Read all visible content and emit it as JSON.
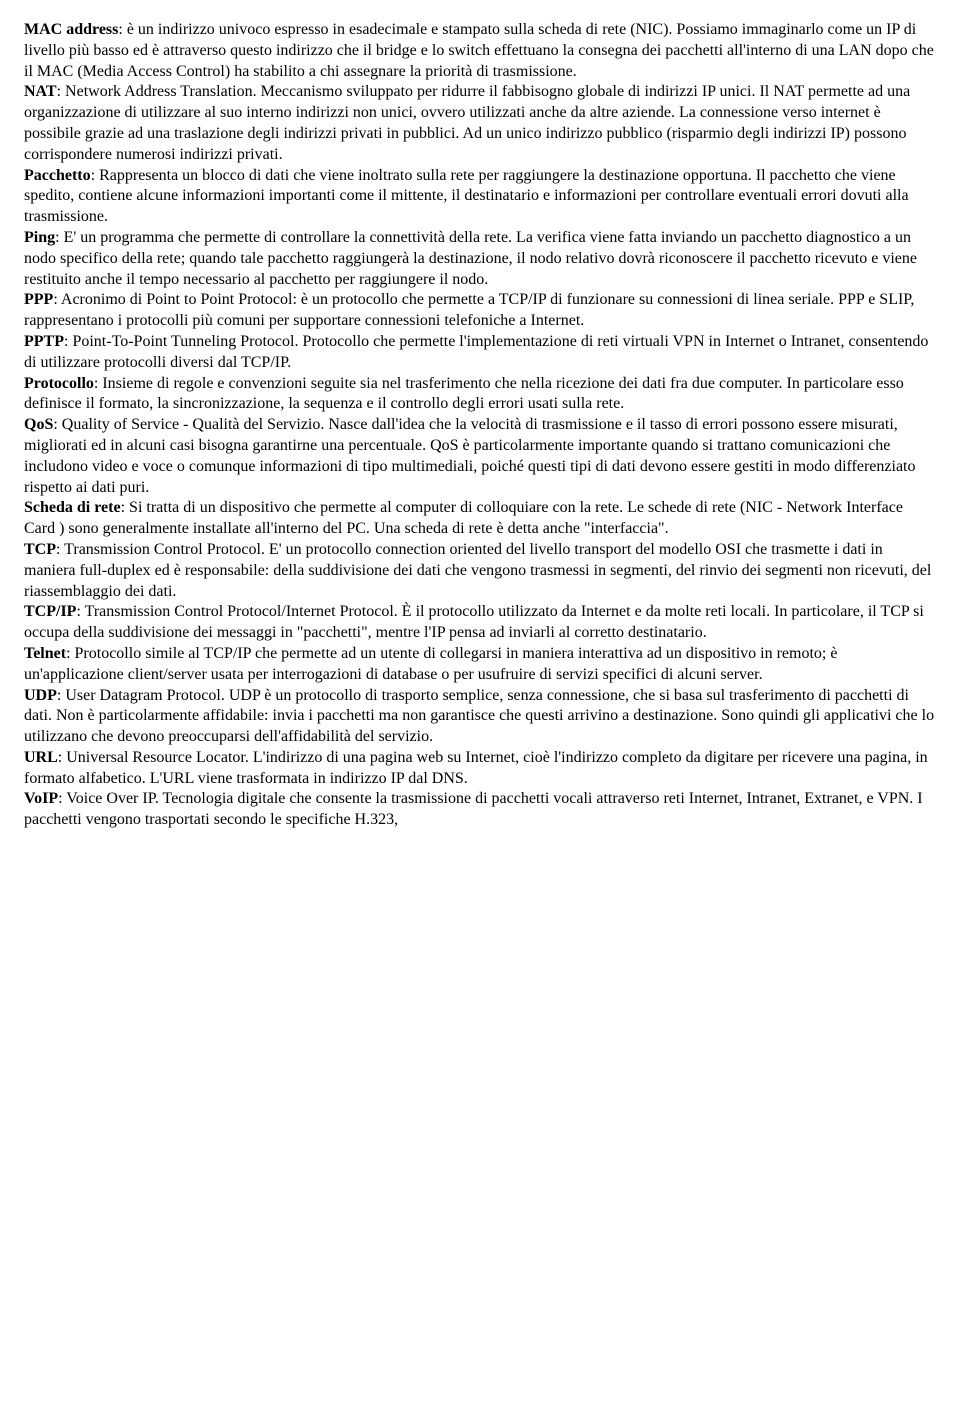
{
  "entries": [
    {
      "term": "MAC address",
      "def": ": è un indirizzo univoco espresso in esadecimale e stampato sulla scheda di rete (NIC). Possiamo immaginarlo come un IP di livello più basso ed è attraverso questo indirizzo che il bridge e lo switch effettuano la consegna dei pacchetti all'interno di una LAN dopo che il MAC (Media Access Control) ha stabilito a chi assegnare la priorità di trasmissione."
    },
    {
      "term": "NAT",
      "def": ": Network Address Translation. Meccanismo sviluppato per ridurre il fabbisogno globale di indirizzi IP unici. Il NAT permette ad una organizzazione di utilizzare al suo interno indirizzi non unici, ovvero utilizzati anche da altre aziende. La connessione verso internet è possibile grazie ad una traslazione degli indirizzi privati in pubblici. Ad un unico indirizzo pubblico (risparmio degli indirizzi IP) possono corrispondere numerosi indirizzi privati."
    },
    {
      "term": "Pacchetto",
      "def": ": Rappresenta un blocco di dati che viene inoltrato sulla rete per raggiungere la destinazione opportuna. Il pacchetto che viene spedito, contiene alcune informazioni importanti come il mittente, il destinatario e informazioni per controllare eventuali errori dovuti alla trasmissione."
    },
    {
      "term": "Ping",
      "def": ": E' un programma che permette di controllare la connettività della rete. La verifica viene fatta inviando un pacchetto diagnostico a un nodo specifico della rete; quando tale pacchetto raggiungerà la destinazione, il nodo relativo dovrà riconoscere il pacchetto ricevuto e viene restituito anche il tempo necessario al pacchetto per raggiungere il nodo."
    },
    {
      "term": "PPP",
      "def": ": Acronimo di Point to Point Protocol: è un protocollo che permette a TCP/IP di funzionare su connessioni di linea seriale. PPP e SLIP, rappresentano i protocolli più comuni per supportare connessioni telefoniche a Internet."
    },
    {
      "term": "PPTP",
      "def": ": Point-To-Point Tunneling Protocol. Protocollo che permette l'implementazione di reti virtuali VPN in Internet o Intranet, consentendo di utilizzare protocolli diversi dal TCP/IP."
    },
    {
      "term": "Protocollo",
      "def": ": Insieme di regole e convenzioni seguite sia nel trasferimento che nella ricezione dei dati fra due computer. In particolare esso definisce il formato, la sincronizzazione, la sequenza e il controllo degli errori usati sulla rete."
    },
    {
      "term": "QoS",
      "def": ": Quality of Service - Qualità del Servizio. Nasce dall'idea che la velocità di trasmissione e il tasso di errori possono essere misurati, migliorati ed in alcuni casi bisogna garantirne una percentuale. QoS è particolarmente importante quando si trattano comunicazioni che includono video e voce o comunque informazioni di tipo multimediali, poiché questi tipi di dati devono essere gestiti in modo differenziato rispetto ai dati puri."
    },
    {
      "term": "Scheda di rete",
      "def": ": Si tratta di un dispositivo che permette al computer di colloquiare con la rete. Le schede di rete (NIC - Network Interface Card ) sono generalmente installate all'interno del PC. Una scheda di rete è detta anche \"interfaccia\"."
    },
    {
      "term": "TCP",
      "def": ": Transmission Control Protocol. E' un protocollo connection oriented del livello transport del modello OSI che trasmette i dati in maniera full-duplex ed è responsabile: della suddivisione dei dati che vengono trasmessi in segmenti, del rinvio dei segmenti non ricevuti, del riassemblaggio dei dati."
    },
    {
      "term": "TCP/IP",
      "def": ": Transmission Control Protocol/Internet Protocol. È il protocollo utilizzato da Internet e da molte reti locali. In particolare, il TCP si occupa della suddivisione dei messaggi in \"pacchetti\", mentre l'IP pensa ad inviarli al corretto destinatario."
    },
    {
      "term": "Telnet",
      "def": ": Protocollo simile al TCP/IP che permette ad un utente di collegarsi in maniera interattiva ad un dispositivo in remoto; è un'applicazione client/server usata per interrogazioni di database o per usufruire di servizi specifici di alcuni server."
    },
    {
      "term": "UDP",
      "def": ": User Datagram Protocol. UDP è un protocollo di trasporto semplice, senza connessione, che si basa sul trasferimento di pacchetti di dati. Non è particolarmente affidabile: invia i pacchetti ma non garantisce che questi arrivino a destinazione. Sono quindi gli applicativi che lo utilizzano che devono preoccuparsi dell'affidabilità del servizio."
    },
    {
      "term": "URL",
      "def": ": Universal Resource Locator. L'indirizzo di una pagina web su Internet, cioè l'indirizzo completo da digitare per ricevere una pagina, in formato alfabetico. L'URL viene trasformata in indirizzo IP dal DNS."
    },
    {
      "term": "VoIP",
      "def": ": Voice Over IP. Tecnologia digitale che consente la trasmissione di pacchetti vocali attraverso reti Internet, Intranet, Extranet, e VPN. I pacchetti vengono trasportati secondo le specifiche H.323,"
    }
  ]
}
